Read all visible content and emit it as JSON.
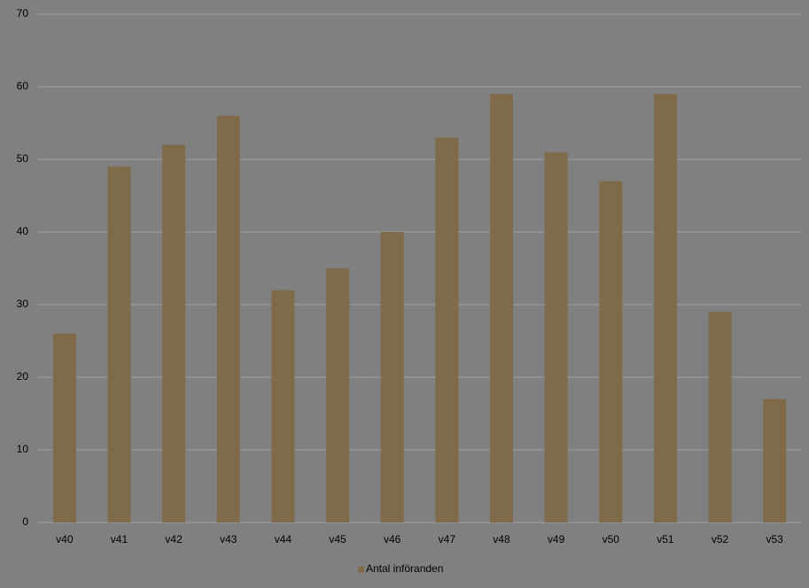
{
  "chart_data": {
    "type": "bar",
    "categories": [
      "v40",
      "v41",
      "v42",
      "v43",
      "v44",
      "v45",
      "v46",
      "v47",
      "v48",
      "v49",
      "v50",
      "v51",
      "v52",
      "v53"
    ],
    "series": [
      {
        "name": "Antal införanden",
        "color": "#7f6a4a",
        "values": [
          26,
          49,
          52,
          56,
          32,
          35,
          40,
          53,
          59,
          51,
          47,
          59,
          29,
          17
        ]
      }
    ],
    "ylim": [
      0,
      70
    ],
    "yticks": [
      0,
      10,
      20,
      30,
      40,
      50,
      60,
      70
    ],
    "grid": true,
    "legend": "bottom"
  }
}
